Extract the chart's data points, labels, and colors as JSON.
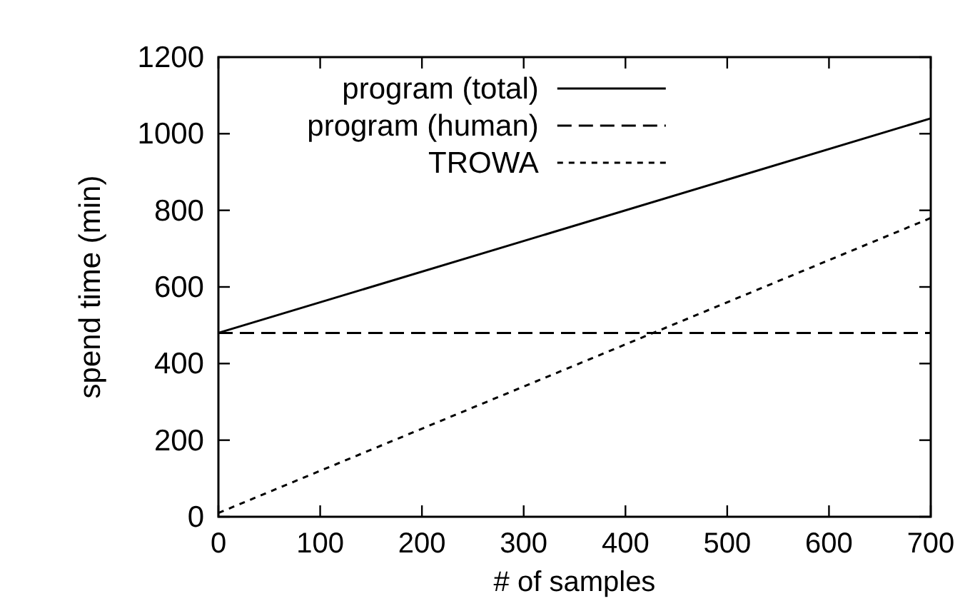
{
  "chart_data": {
    "type": "line",
    "xlabel": "# of samples",
    "ylabel": "spend time (min)",
    "x": [
      0,
      700
    ],
    "series": [
      {
        "name": "program (total)",
        "color": "#000000",
        "values": [
          480,
          1040
        ],
        "line_style": "solid"
      },
      {
        "name": "program (human)",
        "color": "#000000",
        "values": [
          480,
          480
        ],
        "line_style": "dashed"
      },
      {
        "name": "TROWA",
        "color": "#000000",
        "values": [
          10,
          780
        ],
        "line_style": "dotted"
      }
    ],
    "xlim": [
      0,
      700
    ],
    "xticks": [
      0,
      100,
      200,
      300,
      400,
      500,
      600,
      700
    ],
    "ylim": [
      0,
      1200
    ],
    "yticks": [
      0,
      200,
      400,
      600,
      800,
      1000,
      1200
    ],
    "grid": false,
    "legend": "top"
  }
}
